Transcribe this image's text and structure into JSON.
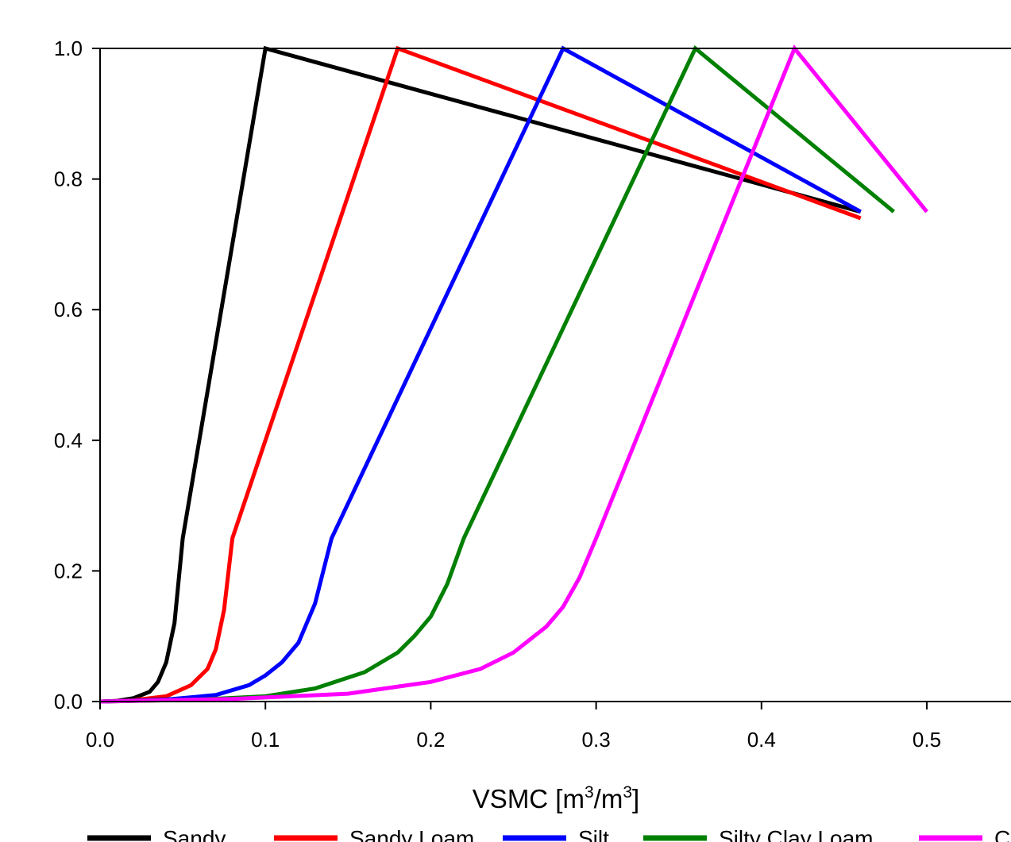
{
  "chart_data": {
    "type": "line",
    "title": "",
    "xlabel": {
      "text": "VSMC [m",
      "sup1": "3",
      "mid": "/m",
      "sup2": "3",
      "end": "]"
    },
    "ylabel": "",
    "xlim": [
      0,
      0.55
    ],
    "ylim": [
      0,
      1.0
    ],
    "xticks": [
      "0.0",
      "0.1",
      "0.2",
      "0.3",
      "0.4",
      "0.5"
    ],
    "yticks": [
      "0.0",
      "0.2",
      "0.4",
      "0.6",
      "0.8",
      "1.0"
    ],
    "grid": false,
    "legend_position": "bottom",
    "series": [
      {
        "name": "Sandy",
        "color": "#000000",
        "x": [
          0,
          0.01,
          0.02,
          0.03,
          0.035,
          0.04,
          0.045,
          0.05,
          0.1,
          0.46
        ],
        "y": [
          0,
          0.001,
          0.005,
          0.015,
          0.03,
          0.06,
          0.12,
          0.25,
          1.0,
          0.75
        ]
      },
      {
        "name": "Sandy Loam",
        "color": "#ff0000",
        "x": [
          0,
          0.02,
          0.04,
          0.055,
          0.065,
          0.07,
          0.075,
          0.08,
          0.18,
          0.46
        ],
        "y": [
          0,
          0.002,
          0.008,
          0.025,
          0.05,
          0.08,
          0.14,
          0.25,
          1.0,
          0.74
        ]
      },
      {
        "name": "Silt",
        "color": "#0000ff",
        "x": [
          0,
          0.04,
          0.07,
          0.09,
          0.1,
          0.11,
          0.12,
          0.13,
          0.14,
          0.28,
          0.46
        ],
        "y": [
          0,
          0.003,
          0.01,
          0.025,
          0.04,
          0.06,
          0.09,
          0.15,
          0.25,
          1.0,
          0.75
        ]
      },
      {
        "name": "Silty Clay Loam",
        "color": "#008000",
        "x": [
          0,
          0.06,
          0.1,
          0.13,
          0.16,
          0.18,
          0.19,
          0.2,
          0.21,
          0.22,
          0.36,
          0.48
        ],
        "y": [
          0,
          0.003,
          0.008,
          0.02,
          0.045,
          0.075,
          0.1,
          0.13,
          0.18,
          0.25,
          1.0,
          0.75
        ]
      },
      {
        "name": "Clay",
        "color": "#ff00ff",
        "x": [
          0,
          0.08,
          0.15,
          0.2,
          0.23,
          0.25,
          0.27,
          0.28,
          0.29,
          0.3,
          0.42,
          0.5
        ],
        "y": [
          0,
          0.004,
          0.012,
          0.03,
          0.05,
          0.075,
          0.115,
          0.145,
          0.19,
          0.25,
          1.0,
          0.75
        ]
      }
    ]
  }
}
